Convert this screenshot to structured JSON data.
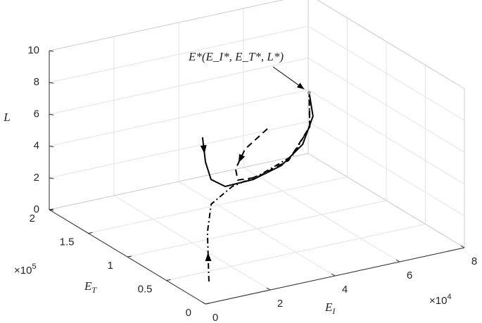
{
  "chart_data": {
    "type": "line3d",
    "xlabel": {
      "text": "E",
      "sub": "I"
    },
    "ylabel": {
      "text": "E",
      "sub": "T"
    },
    "zlabel": "L",
    "x_multiplier": {
      "base": "×10",
      "exp": "4"
    },
    "y_multiplier": {
      "base": "×10",
      "exp": "5"
    },
    "xlim": [
      0,
      80000
    ],
    "ylim": [
      0,
      200000
    ],
    "zlim": [
      0,
      10
    ],
    "xticks": [
      {
        "value": 0,
        "label": "0"
      },
      {
        "value": 20000,
        "label": "2"
      },
      {
        "value": 40000,
        "label": "4"
      },
      {
        "value": 60000,
        "label": "6"
      },
      {
        "value": 80000,
        "label": "8"
      }
    ],
    "yticks": [
      {
        "value": 0,
        "label": "0"
      },
      {
        "value": 50000,
        "label": "0.5"
      },
      {
        "value": 100000,
        "label": "1"
      },
      {
        "value": 150000,
        "label": "1.5"
      },
      {
        "value": 200000,
        "label": "2"
      }
    ],
    "zticks": [
      0,
      2,
      4,
      6,
      8,
      10
    ],
    "grid": true,
    "annotation": {
      "text": "E*(E_I*, E_T*, L*)",
      "x": 54000,
      "y": 91000,
      "z": 8.2
    },
    "series": [
      {
        "style": "solid",
        "color": "#000000",
        "x": [
          37700,
          36200,
          35500,
          36000,
          41800,
          48600,
          53700,
          55900,
          54000
        ],
        "y": [
          160000,
          150000,
          140000,
          124000,
          112000,
          104000,
          98000,
          94000,
          91000
        ],
        "z": [
          4.07,
          2.89,
          2.11,
          2.12,
          2.66,
          3.48,
          4.76,
          6.55,
          8.2
        ]
      },
      {
        "style": "dashdot",
        "color": "#000000",
        "x": [
          8300,
          17500,
          25900,
          34800,
          42100,
          50400,
          54900,
          54000
        ],
        "y": [
          30000,
          70000,
          100000,
          110000,
          104000,
          98000,
          94000,
          91000
        ],
        "z": [
          0.16,
          1.66,
          2.17,
          2.59,
          3.19,
          4.16,
          5.93,
          8.2
        ]
      },
      {
        "style": "dashed",
        "color": "#000000",
        "x": [
          33600,
          29100,
          28600,
          31700,
          40000,
          49800,
          54900,
          54000
        ],
        "y": [
          60000,
          70000,
          80000,
          90000,
          100000,
          100000,
          94000,
          91000
        ],
        "z": [
          7.75,
          6.37,
          4.86,
          3.72,
          3.23,
          3.86,
          5.93,
          8.2
        ]
      }
    ]
  }
}
